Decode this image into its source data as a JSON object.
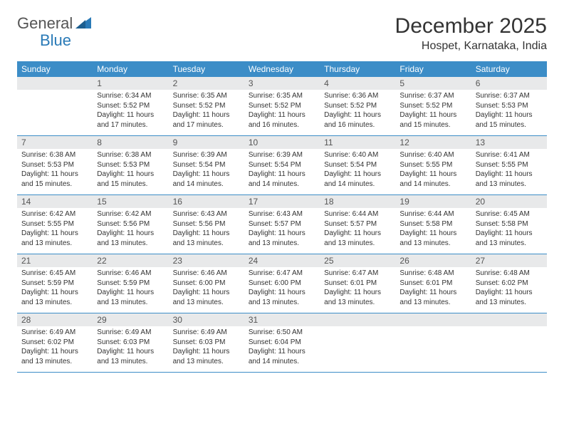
{
  "logo": {
    "text1": "General",
    "text2": "Blue"
  },
  "title": "December 2025",
  "location": "Hospet, Karnataka, India",
  "colors": {
    "header_bg": "#3c8dc7",
    "daynum_bg": "#e8e9ea",
    "text": "#333333",
    "logo_blue": "#2a7ab7",
    "logo_gray": "#555555"
  },
  "weekdays": [
    "Sunday",
    "Monday",
    "Tuesday",
    "Wednesday",
    "Thursday",
    "Friday",
    "Saturday"
  ],
  "weeks": [
    [
      {
        "n": "",
        "sr": "",
        "ss": "",
        "dl": ""
      },
      {
        "n": "1",
        "sr": "Sunrise: 6:34 AM",
        "ss": "Sunset: 5:52 PM",
        "dl": "Daylight: 11 hours and 17 minutes."
      },
      {
        "n": "2",
        "sr": "Sunrise: 6:35 AM",
        "ss": "Sunset: 5:52 PM",
        "dl": "Daylight: 11 hours and 17 minutes."
      },
      {
        "n": "3",
        "sr": "Sunrise: 6:35 AM",
        "ss": "Sunset: 5:52 PM",
        "dl": "Daylight: 11 hours and 16 minutes."
      },
      {
        "n": "4",
        "sr": "Sunrise: 6:36 AM",
        "ss": "Sunset: 5:52 PM",
        "dl": "Daylight: 11 hours and 16 minutes."
      },
      {
        "n": "5",
        "sr": "Sunrise: 6:37 AM",
        "ss": "Sunset: 5:52 PM",
        "dl": "Daylight: 11 hours and 15 minutes."
      },
      {
        "n": "6",
        "sr": "Sunrise: 6:37 AM",
        "ss": "Sunset: 5:53 PM",
        "dl": "Daylight: 11 hours and 15 minutes."
      }
    ],
    [
      {
        "n": "7",
        "sr": "Sunrise: 6:38 AM",
        "ss": "Sunset: 5:53 PM",
        "dl": "Daylight: 11 hours and 15 minutes."
      },
      {
        "n": "8",
        "sr": "Sunrise: 6:38 AM",
        "ss": "Sunset: 5:53 PM",
        "dl": "Daylight: 11 hours and 15 minutes."
      },
      {
        "n": "9",
        "sr": "Sunrise: 6:39 AM",
        "ss": "Sunset: 5:54 PM",
        "dl": "Daylight: 11 hours and 14 minutes."
      },
      {
        "n": "10",
        "sr": "Sunrise: 6:39 AM",
        "ss": "Sunset: 5:54 PM",
        "dl": "Daylight: 11 hours and 14 minutes."
      },
      {
        "n": "11",
        "sr": "Sunrise: 6:40 AM",
        "ss": "Sunset: 5:54 PM",
        "dl": "Daylight: 11 hours and 14 minutes."
      },
      {
        "n": "12",
        "sr": "Sunrise: 6:40 AM",
        "ss": "Sunset: 5:55 PM",
        "dl": "Daylight: 11 hours and 14 minutes."
      },
      {
        "n": "13",
        "sr": "Sunrise: 6:41 AM",
        "ss": "Sunset: 5:55 PM",
        "dl": "Daylight: 11 hours and 13 minutes."
      }
    ],
    [
      {
        "n": "14",
        "sr": "Sunrise: 6:42 AM",
        "ss": "Sunset: 5:55 PM",
        "dl": "Daylight: 11 hours and 13 minutes."
      },
      {
        "n": "15",
        "sr": "Sunrise: 6:42 AM",
        "ss": "Sunset: 5:56 PM",
        "dl": "Daylight: 11 hours and 13 minutes."
      },
      {
        "n": "16",
        "sr": "Sunrise: 6:43 AM",
        "ss": "Sunset: 5:56 PM",
        "dl": "Daylight: 11 hours and 13 minutes."
      },
      {
        "n": "17",
        "sr": "Sunrise: 6:43 AM",
        "ss": "Sunset: 5:57 PM",
        "dl": "Daylight: 11 hours and 13 minutes."
      },
      {
        "n": "18",
        "sr": "Sunrise: 6:44 AM",
        "ss": "Sunset: 5:57 PM",
        "dl": "Daylight: 11 hours and 13 minutes."
      },
      {
        "n": "19",
        "sr": "Sunrise: 6:44 AM",
        "ss": "Sunset: 5:58 PM",
        "dl": "Daylight: 11 hours and 13 minutes."
      },
      {
        "n": "20",
        "sr": "Sunrise: 6:45 AM",
        "ss": "Sunset: 5:58 PM",
        "dl": "Daylight: 11 hours and 13 minutes."
      }
    ],
    [
      {
        "n": "21",
        "sr": "Sunrise: 6:45 AM",
        "ss": "Sunset: 5:59 PM",
        "dl": "Daylight: 11 hours and 13 minutes."
      },
      {
        "n": "22",
        "sr": "Sunrise: 6:46 AM",
        "ss": "Sunset: 5:59 PM",
        "dl": "Daylight: 11 hours and 13 minutes."
      },
      {
        "n": "23",
        "sr": "Sunrise: 6:46 AM",
        "ss": "Sunset: 6:00 PM",
        "dl": "Daylight: 11 hours and 13 minutes."
      },
      {
        "n": "24",
        "sr": "Sunrise: 6:47 AM",
        "ss": "Sunset: 6:00 PM",
        "dl": "Daylight: 11 hours and 13 minutes."
      },
      {
        "n": "25",
        "sr": "Sunrise: 6:47 AM",
        "ss": "Sunset: 6:01 PM",
        "dl": "Daylight: 11 hours and 13 minutes."
      },
      {
        "n": "26",
        "sr": "Sunrise: 6:48 AM",
        "ss": "Sunset: 6:01 PM",
        "dl": "Daylight: 11 hours and 13 minutes."
      },
      {
        "n": "27",
        "sr": "Sunrise: 6:48 AM",
        "ss": "Sunset: 6:02 PM",
        "dl": "Daylight: 11 hours and 13 minutes."
      }
    ],
    [
      {
        "n": "28",
        "sr": "Sunrise: 6:49 AM",
        "ss": "Sunset: 6:02 PM",
        "dl": "Daylight: 11 hours and 13 minutes."
      },
      {
        "n": "29",
        "sr": "Sunrise: 6:49 AM",
        "ss": "Sunset: 6:03 PM",
        "dl": "Daylight: 11 hours and 13 minutes."
      },
      {
        "n": "30",
        "sr": "Sunrise: 6:49 AM",
        "ss": "Sunset: 6:03 PM",
        "dl": "Daylight: 11 hours and 13 minutes."
      },
      {
        "n": "31",
        "sr": "Sunrise: 6:50 AM",
        "ss": "Sunset: 6:04 PM",
        "dl": "Daylight: 11 hours and 14 minutes."
      },
      {
        "n": "",
        "sr": "",
        "ss": "",
        "dl": ""
      },
      {
        "n": "",
        "sr": "",
        "ss": "",
        "dl": ""
      },
      {
        "n": "",
        "sr": "",
        "ss": "",
        "dl": ""
      }
    ]
  ]
}
